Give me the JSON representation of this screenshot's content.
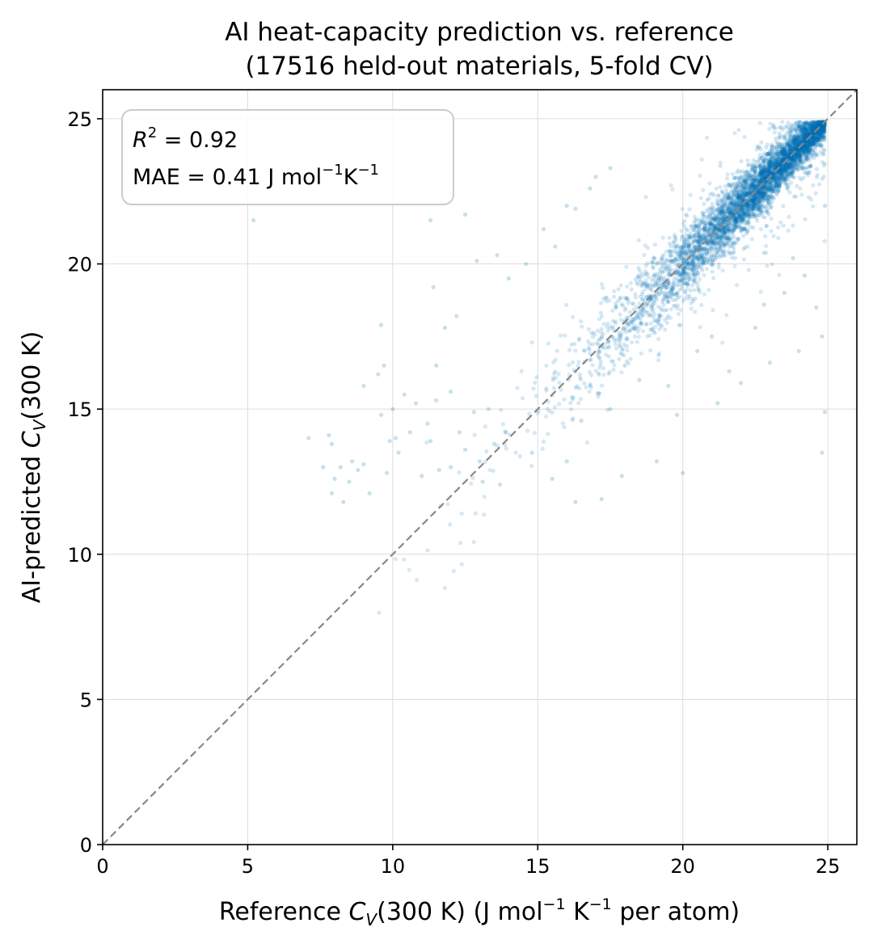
{
  "chart_data": {
    "type": "scatter",
    "title": [
      "AI heat-capacity prediction vs. reference",
      "(17516 held-out materials, 5-fold CV)"
    ],
    "xlabel": {
      "prefix": "Reference ",
      "var": "C",
      "sub": "V",
      "mid": "(300 K)  (J mol",
      "sup1": "−1",
      "mid2": " K",
      "sup2": "−1",
      "suffix": " per atom)"
    },
    "ylabel": {
      "prefix": "AI-predicted ",
      "var": "C",
      "sub": "V",
      "suffix": "(300 K)"
    },
    "xlim": [
      0,
      26
    ],
    "ylim": [
      0,
      26
    ],
    "xticks": [
      0,
      5,
      10,
      15,
      20,
      25
    ],
    "yticks": [
      0,
      5,
      10,
      15,
      20,
      25
    ],
    "grid": true,
    "reference_line": {
      "type": "y=x",
      "style": "dashed",
      "color": "#888888"
    },
    "point_color": "#0072b2",
    "n_points": 17516,
    "stats": {
      "r2": {
        "var": "R",
        "sup": "2",
        "text": " = 0.92"
      },
      "mae": {
        "prefix": "MAE = 0.41 J mol",
        "sup1": "−1",
        "mid": "K",
        "sup2": "−1"
      }
    },
    "outliers": [
      [
        7.1,
        14.0
      ],
      [
        7.6,
        13.0
      ],
      [
        7.8,
        14.1
      ],
      [
        7.9,
        13.8
      ],
      [
        7.9,
        12.1
      ],
      [
        8.0,
        12.6
      ],
      [
        8.3,
        11.8
      ],
      [
        8.2,
        13.0
      ],
      [
        8.5,
        12.5
      ],
      [
        8.6,
        13.2
      ],
      [
        8.8,
        12.9
      ],
      [
        9.0,
        13.1
      ],
      [
        9.2,
        12.1
      ],
      [
        9.0,
        15.8
      ],
      [
        9.5,
        16.2
      ],
      [
        9.6,
        14.8
      ],
      [
        9.9,
        13.9
      ],
      [
        10.0,
        15.0
      ],
      [
        10.1,
        14.0
      ],
      [
        9.8,
        12.8
      ],
      [
        10.2,
        13.5
      ],
      [
        10.4,
        15.5
      ],
      [
        10.6,
        14.2
      ],
      [
        10.8,
        15.2
      ],
      [
        11.0,
        12.7
      ],
      [
        11.2,
        14.5
      ],
      [
        11.3,
        13.9
      ],
      [
        11.5,
        16.5
      ],
      [
        11.5,
        15.3
      ],
      [
        11.6,
        12.9
      ],
      [
        12.0,
        15.6
      ],
      [
        12.3,
        14.2
      ],
      [
        12.5,
        13.6
      ],
      [
        12.8,
        14.9
      ],
      [
        13.0,
        13.2
      ],
      [
        13.1,
        12.5
      ],
      [
        13.3,
        15.0
      ],
      [
        13.5,
        13.8
      ],
      [
        13.7,
        12.4
      ],
      [
        13.9,
        14.2
      ],
      [
        12.0,
        13.0
      ],
      [
        11.4,
        19.2
      ],
      [
        11.3,
        21.5
      ],
      [
        11.8,
        17.8
      ],
      [
        12.2,
        18.2
      ],
      [
        12.9,
        20.1
      ],
      [
        12.5,
        21.7
      ],
      [
        13.6,
        20.3
      ],
      [
        14.0,
        19.5
      ],
      [
        14.6,
        20.0
      ],
      [
        15.2,
        21.2
      ],
      [
        15.6,
        20.6
      ],
      [
        16.3,
        21.9
      ],
      [
        16.0,
        22.0
      ],
      [
        17.0,
        23.0
      ],
      [
        17.5,
        23.3
      ],
      [
        16.8,
        22.6
      ],
      [
        5.2,
        21.5
      ],
      [
        9.7,
        16.5
      ],
      [
        9.6,
        17.9
      ],
      [
        17.9,
        12.7
      ],
      [
        17.2,
        11.9
      ],
      [
        16.3,
        11.8
      ],
      [
        19.1,
        13.2
      ],
      [
        20.0,
        12.8
      ],
      [
        19.8,
        14.8
      ],
      [
        21.2,
        15.2
      ],
      [
        21.6,
        16.3
      ],
      [
        22.0,
        15.9
      ],
      [
        23.0,
        16.6
      ],
      [
        24.0,
        17.0
      ],
      [
        24.8,
        17.5
      ],
      [
        24.8,
        13.5
      ],
      [
        24.9,
        14.9
      ],
      [
        24.6,
        18.5
      ],
      [
        24.2,
        19.6
      ],
      [
        23.8,
        20.2
      ],
      [
        20.5,
        17.0
      ],
      [
        22.5,
        17.8
      ],
      [
        21.0,
        17.5
      ],
      [
        19.5,
        15.8
      ],
      [
        23.5,
        19.0
      ],
      [
        22.8,
        18.6
      ],
      [
        24.9,
        22.0
      ],
      [
        18.0,
        16.5
      ],
      [
        17.5,
        15.0
      ],
      [
        16.0,
        13.2
      ],
      [
        15.5,
        12.6
      ],
      [
        14.8,
        13.5
      ],
      [
        16.5,
        14.6
      ],
      [
        18.5,
        16.0
      ]
    ]
  }
}
